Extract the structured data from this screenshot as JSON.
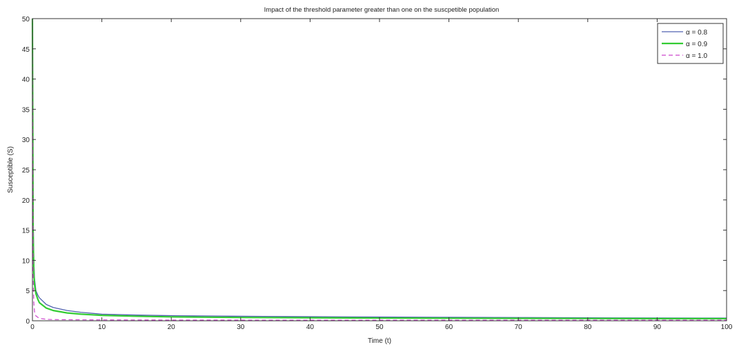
{
  "chart_data": {
    "type": "line",
    "title": "Impact of the threshold parameter greater than one on the suscpetible population",
    "xlabel": "Time (t)",
    "ylabel": "Susceptible (S)",
    "xlim": [
      0,
      100
    ],
    "ylim": [
      0,
      50
    ],
    "xticks": [
      0,
      10,
      20,
      30,
      40,
      50,
      60,
      70,
      80,
      90,
      100
    ],
    "yticks": [
      0,
      5,
      10,
      15,
      20,
      25,
      30,
      35,
      40,
      45,
      50
    ],
    "grid": false,
    "legend_position": "top-right",
    "series": [
      {
        "name": "α = 0.8",
        "color": "#5060b0",
        "style": "solid",
        "x": [
          0,
          0.1,
          0.2,
          0.3,
          0.5,
          0.8,
          1,
          2,
          3,
          5,
          7,
          10,
          15,
          20,
          30,
          40,
          50,
          60,
          70,
          80,
          90,
          100
        ],
        "y": [
          50,
          17.5,
          10,
          7,
          5,
          4.2,
          3.8,
          2.7,
          2.2,
          1.7,
          1.4,
          1.1,
          0.95,
          0.85,
          0.75,
          0.68,
          0.62,
          0.58,
          0.54,
          0.5,
          0.47,
          0.45
        ]
      },
      {
        "name": "α = 0.9",
        "color": "#33cc33",
        "style": "solid",
        "x": [
          0,
          0.1,
          0.2,
          0.3,
          0.5,
          0.8,
          1,
          2,
          3,
          5,
          7,
          10,
          15,
          20,
          30,
          40,
          50,
          60,
          70,
          80,
          90,
          100
        ],
        "y": [
          50,
          15,
          8,
          6,
          4.5,
          3.5,
          3,
          2.1,
          1.7,
          1.3,
          1.1,
          0.9,
          0.75,
          0.65,
          0.55,
          0.5,
          0.45,
          0.42,
          0.4,
          0.38,
          0.36,
          0.35
        ]
      },
      {
        "name": "α = 1.0",
        "color": "#cc44cc",
        "style": "dashed",
        "x": [
          0,
          0.1,
          0.2,
          0.3,
          0.5,
          1,
          2,
          3,
          5,
          10,
          20,
          40,
          60,
          80,
          100
        ],
        "y": [
          50,
          8,
          3,
          1.5,
          0.8,
          0.4,
          0.25,
          0.2,
          0.18,
          0.15,
          0.12,
          0.1,
          0.1,
          0.1,
          0.1
        ]
      }
    ]
  }
}
